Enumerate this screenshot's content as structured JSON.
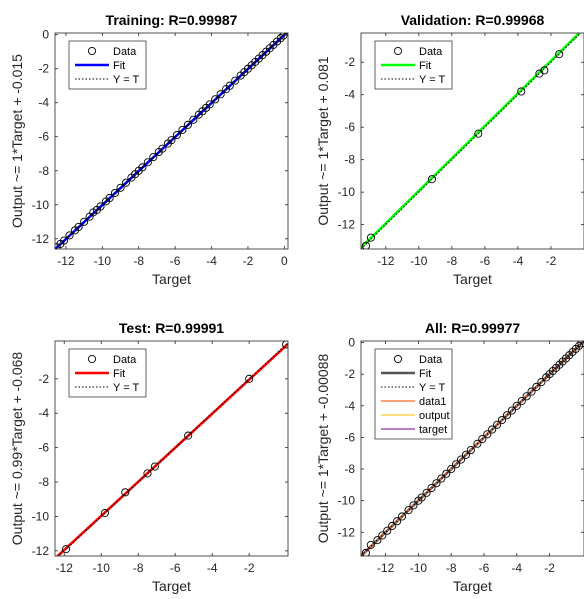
{
  "chart_data": [
    {
      "type": "scatter",
      "title": "Training: R=0.99987",
      "xlabel": "Target",
      "ylabel": "Output ~= 1*Target + -0.015",
      "xlim": [
        -12.6,
        0.2
      ],
      "ylim": [
        -12.6,
        0.1
      ],
      "xticks": [
        -12,
        -10,
        -8,
        -6,
        -4,
        -2,
        0
      ],
      "yticks": [
        0,
        -2,
        -4,
        -6,
        -8,
        -10,
        -12
      ],
      "grid": false,
      "legend_position": "top-left",
      "colors": {
        "fit": "#0000ff"
      },
      "legend": [
        "Data",
        "Fit",
        "Y = T"
      ],
      "fit": {
        "slope": 1,
        "intercept": -0.015
      },
      "points": [
        [
          -12.5,
          -12.5
        ],
        [
          -12.3,
          -12.3
        ],
        [
          -12.1,
          -12.1
        ],
        [
          -11.8,
          -11.8
        ],
        [
          -11.5,
          -11.5
        ],
        [
          -11.3,
          -11.3
        ],
        [
          -11.0,
          -11.0
        ],
        [
          -10.7,
          -10.7
        ],
        [
          -10.5,
          -10.45
        ],
        [
          -10.3,
          -10.3
        ],
        [
          -10.1,
          -10.1
        ],
        [
          -9.8,
          -9.8
        ],
        [
          -9.6,
          -9.6
        ],
        [
          -9.3,
          -9.3
        ],
        [
          -9.0,
          -9.0
        ],
        [
          -8.7,
          -8.7
        ],
        [
          -8.4,
          -8.4
        ],
        [
          -8.2,
          -8.2
        ],
        [
          -8.0,
          -8.0
        ],
        [
          -7.8,
          -7.8
        ],
        [
          -7.5,
          -7.5
        ],
        [
          -7.2,
          -7.2
        ],
        [
          -6.9,
          -6.9
        ],
        [
          -6.7,
          -6.7
        ],
        [
          -6.4,
          -6.4
        ],
        [
          -6.2,
          -6.2
        ],
        [
          -5.9,
          -5.9
        ],
        [
          -5.6,
          -5.6
        ],
        [
          -5.3,
          -5.3
        ],
        [
          -5.0,
          -5.0
        ],
        [
          -4.7,
          -4.7
        ],
        [
          -4.5,
          -4.5
        ],
        [
          -4.3,
          -4.3
        ],
        [
          -4.1,
          -4.1
        ],
        [
          -3.8,
          -3.8
        ],
        [
          -3.5,
          -3.5
        ],
        [
          -3.2,
          -3.2
        ],
        [
          -3.0,
          -3.0
        ],
        [
          -2.7,
          -2.7
        ],
        [
          -2.4,
          -2.4
        ],
        [
          -2.2,
          -2.2
        ],
        [
          -2.0,
          -2.0
        ],
        [
          -1.8,
          -1.8
        ],
        [
          -1.6,
          -1.6
        ],
        [
          -1.4,
          -1.4
        ],
        [
          -1.2,
          -1.2
        ],
        [
          -1.0,
          -1.0
        ],
        [
          -0.8,
          -0.8
        ],
        [
          -0.6,
          -0.6
        ],
        [
          -0.4,
          -0.4
        ],
        [
          -0.2,
          -0.2
        ],
        [
          -0.05,
          -0.05
        ]
      ]
    },
    {
      "type": "scatter",
      "title": "Validation: R=0.99968",
      "xlabel": "Target",
      "ylabel": "Output ~= 1*Target + 0.081",
      "xlim": [
        -13.5,
        0
      ],
      "ylim": [
        -13.5,
        -0.2
      ],
      "xticks": [
        -12,
        -10,
        -8,
        -6,
        -4,
        -2
      ],
      "yticks": [
        -2,
        -4,
        -6,
        -8,
        -10,
        -12
      ],
      "grid": false,
      "legend_position": "top-left",
      "colors": {
        "fit": "#00ff00"
      },
      "legend": [
        "Data",
        "Fit",
        "Y = T"
      ],
      "fit": {
        "slope": 1,
        "intercept": 0.081
      },
      "points": [
        [
          -13.2,
          -13.3
        ],
        [
          -12.9,
          -12.8
        ],
        [
          -9.2,
          -9.2
        ],
        [
          -6.4,
          -6.4
        ],
        [
          -3.8,
          -3.8
        ],
        [
          -2.7,
          -2.7
        ],
        [
          -2.4,
          -2.5
        ],
        [
          -1.5,
          -1.5
        ]
      ]
    },
    {
      "type": "scatter",
      "title": "Test: R=0.99991",
      "xlabel": "Target",
      "ylabel": "Output ~= 0.99*Target + -0.068",
      "xlim": [
        -12.5,
        0.1
      ],
      "ylim": [
        -12.3,
        0.2
      ],
      "xticks": [
        -12,
        -10,
        -8,
        -6,
        -4,
        -2
      ],
      "yticks": [
        -2,
        -4,
        -6,
        -8,
        -10,
        -12
      ],
      "grid": false,
      "legend_position": "top-left",
      "colors": {
        "fit": "#ff0000"
      },
      "legend": [
        "Data",
        "Fit",
        "Y = T"
      ],
      "fit": {
        "slope": 0.99,
        "intercept": -0.068
      },
      "points": [
        [
          -11.9,
          -11.9
        ],
        [
          -9.8,
          -9.8
        ],
        [
          -8.7,
          -8.6
        ],
        [
          -7.5,
          -7.5
        ],
        [
          -7.1,
          -7.1
        ],
        [
          -5.3,
          -5.3
        ],
        [
          -2.0,
          -2.0
        ],
        [
          0,
          0
        ]
      ]
    },
    {
      "type": "scatter",
      "title": "All: R=0.99977",
      "xlabel": "Target",
      "ylabel": "Output ~= 1*Target + -0.00088",
      "xlim": [
        -13.5,
        0.1
      ],
      "ylim": [
        -13.5,
        0.1
      ],
      "xticks": [
        -12,
        -10,
        -8,
        -6,
        -4,
        -2
      ],
      "yticks": [
        0,
        -2,
        -4,
        -6,
        -8,
        -10,
        -12
      ],
      "grid": false,
      "legend_position": "top-left",
      "colors": {
        "fit": "#555555",
        "data1": "#ff6a2a",
        "output": "#ffcc33",
        "target": "#9b2fae"
      },
      "legend": [
        "Data",
        "Fit",
        "Y = T",
        "data1",
        "output",
        "target"
      ],
      "fit": {
        "slope": 1,
        "intercept": -0.00088
      },
      "points": [
        [
          -13.2,
          -13.3
        ],
        [
          -12.9,
          -12.8
        ],
        [
          -12.5,
          -12.5
        ],
        [
          -12.2,
          -12.2
        ],
        [
          -11.9,
          -11.9
        ],
        [
          -11.6,
          -11.6
        ],
        [
          -11.3,
          -11.3
        ],
        [
          -11.0,
          -11.0
        ],
        [
          -10.6,
          -10.6
        ],
        [
          -10.3,
          -10.3
        ],
        [
          -10.0,
          -10.0
        ],
        [
          -9.8,
          -9.8
        ],
        [
          -9.5,
          -9.5
        ],
        [
          -9.2,
          -9.2
        ],
        [
          -8.9,
          -8.9
        ],
        [
          -8.6,
          -8.6
        ],
        [
          -8.3,
          -8.3
        ],
        [
          -8.0,
          -8.0
        ],
        [
          -7.7,
          -7.7
        ],
        [
          -7.4,
          -7.4
        ],
        [
          -7.1,
          -7.1
        ],
        [
          -6.8,
          -6.8
        ],
        [
          -6.4,
          -6.4
        ],
        [
          -6.1,
          -6.1
        ],
        [
          -5.8,
          -5.8
        ],
        [
          -5.5,
          -5.5
        ],
        [
          -5.2,
          -5.2
        ],
        [
          -4.9,
          -4.9
        ],
        [
          -4.6,
          -4.6
        ],
        [
          -4.3,
          -4.3
        ],
        [
          -4.0,
          -4.0
        ],
        [
          -3.7,
          -3.7
        ],
        [
          -3.4,
          -3.4
        ],
        [
          -3.1,
          -3.1
        ],
        [
          -2.8,
          -2.8
        ],
        [
          -2.5,
          -2.5
        ],
        [
          -2.2,
          -2.2
        ],
        [
          -2.0,
          -2.0
        ],
        [
          -1.8,
          -1.8
        ],
        [
          -1.6,
          -1.6
        ],
        [
          -1.4,
          -1.4
        ],
        [
          -1.2,
          -1.2
        ],
        [
          -1.0,
          -1.0
        ],
        [
          -0.8,
          -0.8
        ],
        [
          -0.6,
          -0.6
        ],
        [
          -0.4,
          -0.4
        ],
        [
          -0.2,
          -0.2
        ],
        [
          -0.05,
          -0.05
        ]
      ]
    }
  ]
}
